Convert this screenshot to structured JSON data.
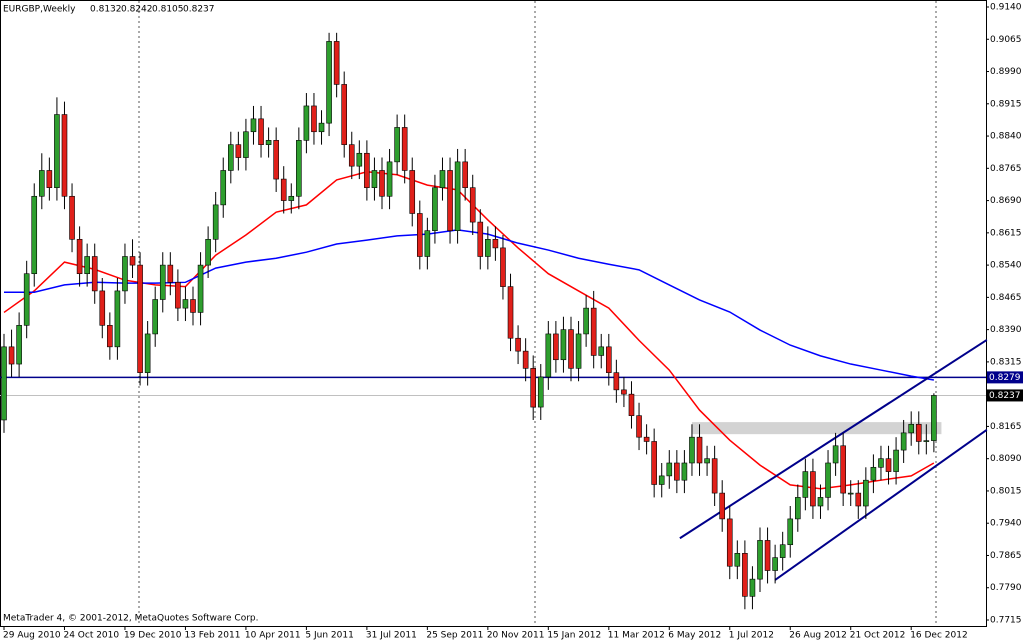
{
  "chart_data": {
    "type": "candlestick",
    "header": {
      "symbol": "EURGBP,Weekly",
      "ohlc": [
        0.8132,
        0.8242,
        0.8105,
        0.8237
      ]
    },
    "footer": "MetaTrader 4, © 2001-2012, MetaQuotes Software Corp.",
    "up_color": "#2e9e2e",
    "down_color": "#e0201a",
    "open": [
      0.818,
      0.835,
      0.831,
      0.84,
      0.852,
      0.87,
      0.876,
      0.872,
      0.889,
      0.87,
      0.86,
      0.852,
      0.856,
      0.848,
      0.84,
      0.835,
      0.848,
      0.856,
      0.854,
      0.829,
      0.838,
      0.846,
      0.854,
      0.85,
      0.844,
      0.846,
      0.843,
      0.854,
      0.86,
      0.868,
      0.876,
      0.882,
      0.879,
      0.885,
      0.888,
      0.882,
      0.883,
      0.874,
      0.869,
      0.87,
      0.883,
      0.891,
      0.885,
      0.887,
      0.906,
      0.896,
      0.882,
      0.877,
      0.88,
      0.872,
      0.876,
      0.87,
      0.878,
      0.886,
      0.876,
      0.866,
      0.856,
      0.862,
      0.872,
      0.876,
      0.862,
      0.878,
      0.872,
      0.864,
      0.856,
      0.86,
      0.858,
      0.849,
      0.837,
      0.834,
      0.83,
      0.821,
      0.828,
      0.838,
      0.832,
      0.839,
      0.83,
      0.838,
      0.844,
      0.833,
      0.835,
      0.829,
      0.825,
      0.824,
      0.819,
      0.814,
      0.813,
      0.803,
      0.805,
      0.808,
      0.804,
      0.808,
      0.814,
      0.808,
      0.809,
      0.801,
      0.795,
      0.784,
      0.787,
      0.777,
      0.781,
      0.79,
      0.783,
      0.786,
      0.789,
      0.795,
      0.8,
      0.806,
      0.798,
      0.8,
      0.808,
      0.812,
      0.801,
      0.801,
      0.798,
      0.804,
      0.807,
      0.809,
      0.806,
      0.811,
      0.815,
      0.817,
      0.813,
      0.8132
    ],
    "high": [
      0.838,
      0.839,
      0.843,
      0.855,
      0.873,
      0.88,
      0.879,
      0.893,
      0.892,
      0.873,
      0.863,
      0.859,
      0.859,
      0.851,
      0.843,
      0.851,
      0.859,
      0.86,
      0.857,
      0.841,
      0.849,
      0.857,
      0.857,
      0.853,
      0.849,
      0.849,
      0.857,
      0.863,
      0.871,
      0.879,
      0.885,
      0.885,
      0.888,
      0.891,
      0.891,
      0.886,
      0.886,
      0.877,
      0.873,
      0.886,
      0.894,
      0.894,
      0.89,
      0.908,
      0.908,
      0.899,
      0.885,
      0.883,
      0.883,
      0.879,
      0.879,
      0.881,
      0.889,
      0.889,
      0.879,
      0.869,
      0.865,
      0.875,
      0.879,
      0.879,
      0.881,
      0.881,
      0.875,
      0.867,
      0.863,
      0.863,
      0.861,
      0.852,
      0.84,
      0.837,
      0.833,
      0.831,
      0.841,
      0.841,
      0.842,
      0.842,
      0.841,
      0.847,
      0.848,
      0.838,
      0.838,
      0.832,
      0.828,
      0.827,
      0.822,
      0.817,
      0.816,
      0.808,
      0.811,
      0.811,
      0.811,
      0.817,
      0.817,
      0.812,
      0.812,
      0.804,
      0.798,
      0.79,
      0.79,
      0.784,
      0.793,
      0.793,
      0.789,
      0.792,
      0.798,
      0.803,
      0.809,
      0.809,
      0.803,
      0.811,
      0.815,
      0.815,
      0.804,
      0.804,
      0.807,
      0.81,
      0.812,
      0.812,
      0.814,
      0.818,
      0.82,
      0.82,
      0.817,
      0.8242
    ],
    "low": [
      0.815,
      0.828,
      0.828,
      0.837,
      0.849,
      0.867,
      0.869,
      0.869,
      0.867,
      0.857,
      0.849,
      0.849,
      0.845,
      0.837,
      0.832,
      0.832,
      0.845,
      0.851,
      0.826,
      0.826,
      0.835,
      0.843,
      0.847,
      0.841,
      0.841,
      0.84,
      0.84,
      0.851,
      0.857,
      0.865,
      0.873,
      0.876,
      0.876,
      0.882,
      0.879,
      0.879,
      0.871,
      0.866,
      0.866,
      0.867,
      0.88,
      0.882,
      0.882,
      0.884,
      0.893,
      0.879,
      0.874,
      0.874,
      0.869,
      0.869,
      0.867,
      0.867,
      0.875,
      0.873,
      0.863,
      0.853,
      0.853,
      0.859,
      0.869,
      0.859,
      0.859,
      0.869,
      0.861,
      0.853,
      0.853,
      0.855,
      0.846,
      0.834,
      0.831,
      0.827,
      0.818,
      0.818,
      0.825,
      0.829,
      0.829,
      0.827,
      0.827,
      0.835,
      0.83,
      0.83,
      0.826,
      0.822,
      0.821,
      0.816,
      0.811,
      0.81,
      0.8,
      0.8,
      0.802,
      0.801,
      0.801,
      0.805,
      0.805,
      0.805,
      0.798,
      0.792,
      0.781,
      0.781,
      0.774,
      0.774,
      0.778,
      0.78,
      0.78,
      0.783,
      0.786,
      0.792,
      0.797,
      0.795,
      0.795,
      0.797,
      0.805,
      0.798,
      0.798,
      0.795,
      0.795,
      0.801,
      0.804,
      0.803,
      0.803,
      0.808,
      0.812,
      0.81,
      0.81,
      0.8105
    ],
    "close": [
      0.835,
      0.831,
      0.84,
      0.852,
      0.87,
      0.876,
      0.872,
      0.889,
      0.87,
      0.86,
      0.852,
      0.856,
      0.848,
      0.84,
      0.835,
      0.848,
      0.856,
      0.854,
      0.829,
      0.838,
      0.846,
      0.854,
      0.85,
      0.844,
      0.846,
      0.843,
      0.854,
      0.86,
      0.868,
      0.876,
      0.882,
      0.879,
      0.885,
      0.888,
      0.882,
      0.883,
      0.874,
      0.869,
      0.87,
      0.883,
      0.891,
      0.885,
      0.887,
      0.906,
      0.896,
      0.882,
      0.877,
      0.88,
      0.872,
      0.876,
      0.87,
      0.878,
      0.886,
      0.876,
      0.866,
      0.856,
      0.862,
      0.872,
      0.876,
      0.862,
      0.878,
      0.872,
      0.864,
      0.856,
      0.86,
      0.858,
      0.849,
      0.837,
      0.834,
      0.83,
      0.821,
      0.828,
      0.838,
      0.832,
      0.839,
      0.83,
      0.838,
      0.844,
      0.833,
      0.835,
      0.829,
      0.825,
      0.824,
      0.819,
      0.814,
      0.813,
      0.803,
      0.805,
      0.808,
      0.804,
      0.808,
      0.814,
      0.808,
      0.809,
      0.801,
      0.795,
      0.784,
      0.787,
      0.777,
      0.781,
      0.79,
      0.783,
      0.786,
      0.789,
      0.795,
      0.8,
      0.806,
      0.798,
      0.8,
      0.808,
      0.812,
      0.801,
      0.801,
      0.798,
      0.804,
      0.807,
      0.809,
      0.806,
      0.811,
      0.815,
      0.817,
      0.813,
      0.8132,
      0.8237
    ],
    "ma_lines": [
      {
        "color": "#ff0000",
        "x": [
          0,
          4,
          8,
          12,
          16,
          20,
          24,
          28,
          32,
          36,
          40,
          44,
          48,
          52,
          56,
          60,
          64,
          68,
          72,
          76,
          80,
          84,
          88,
          92,
          96,
          100,
          104,
          108,
          112,
          116,
          120,
          123
        ],
        "values": [
          0.843,
          0.848,
          0.8547,
          0.853,
          0.8505,
          0.8494,
          0.849,
          0.8563,
          0.861,
          0.8663,
          0.868,
          0.8738,
          0.8757,
          0.875,
          0.8726,
          0.8715,
          0.8645,
          0.858,
          0.852,
          0.848,
          0.844,
          0.8365,
          0.8296,
          0.8203,
          0.8133,
          0.8075,
          0.8029,
          0.802,
          0.8029,
          0.804,
          0.805,
          0.808
        ]
      },
      {
        "color": "#0000ff",
        "x": [
          0,
          4,
          8,
          12,
          16,
          20,
          24,
          28,
          32,
          36,
          40,
          44,
          48,
          52,
          56,
          60,
          64,
          68,
          72,
          76,
          80,
          84,
          88,
          92,
          96,
          100,
          104,
          108,
          112,
          116,
          120,
          123
        ],
        "values": [
          0.8477,
          0.8477,
          0.8494,
          0.85,
          0.8498,
          0.8498,
          0.85,
          0.8533,
          0.8547,
          0.8556,
          0.857,
          0.8589,
          0.8598,
          0.8608,
          0.8612,
          0.8622,
          0.8612,
          0.8591,
          0.8575,
          0.8556,
          0.8542,
          0.8529,
          0.8494,
          0.8459,
          0.8431,
          0.8389,
          0.8354,
          0.8329,
          0.831,
          0.8296,
          0.8282,
          0.8273
        ]
      }
    ],
    "trendlines": [
      {
        "color": "#00008b",
        "x": [
          89.4,
          130
        ],
        "y": [
          0.7905,
          0.8366
        ]
      },
      {
        "color": "#00008b",
        "x": [
          102,
          130
        ],
        "y": [
          0.7808,
          0.8157
        ]
      }
    ],
    "zone": {
      "color": "#d3d3d3",
      "x": [
        91,
        124
      ],
      "y": [
        0.8147,
        0.8175
      ]
    },
    "hline": {
      "color": "#00008b",
      "value": 0.8279
    },
    "ylim": [
      0.7715,
      0.914
    ],
    "yticks": [
      {
        "value": 0.914,
        "label": "0.9140"
      },
      0.9065,
      {
        "value": 0.899,
        "label": "0.8990"
      },
      0.8915,
      {
        "value": 0.884,
        "label": "0.8840"
      },
      0.8765,
      {
        "value": 0.869,
        "label": "0.8690"
      },
      0.8615,
      {
        "value": 0.854,
        "label": "0.8540"
      },
      0.8465,
      {
        "value": 0.839,
        "label": "0.8390"
      },
      0.8315,
      0.8165,
      {
        "value": 0.809,
        "label": "0.8090"
      },
      0.8015,
      {
        "value": 0.794,
        "label": "0.7940"
      },
      0.7865,
      {
        "value": 0.779,
        "label": "0.7790"
      },
      0.7715
    ],
    "xticks": [
      {
        "value": 0,
        "label": "29 Aug 2010"
      },
      {
        "value": 8,
        "label": "24 Oct 2010"
      },
      {
        "value": 16,
        "label": "19 Dec 2010"
      },
      {
        "value": 24,
        "label": "13 Feb 2011"
      },
      {
        "value": 32,
        "label": "10 Apr 2011"
      },
      {
        "value": 40,
        "label": "5 Jun 2011"
      },
      {
        "value": 48,
        "label": "31 Jul 2011"
      },
      {
        "value": 56,
        "label": "25 Sep 2011"
      },
      {
        "value": 64,
        "label": "20 Nov 2011"
      },
      {
        "value": 72,
        "label": "15 Jan 2012"
      },
      {
        "value": 80,
        "label": "11 Mar 2012"
      },
      {
        "value": 88,
        "label": "6 May 2012"
      },
      {
        "value": 96,
        "label": "1 Jul 2012"
      },
      {
        "value": 104,
        "label": "26 Aug 2012"
      },
      {
        "value": 112,
        "label": "21 Oct 2012"
      },
      {
        "value": 120,
        "label": "16 Dec 2012"
      }
    ]
  }
}
